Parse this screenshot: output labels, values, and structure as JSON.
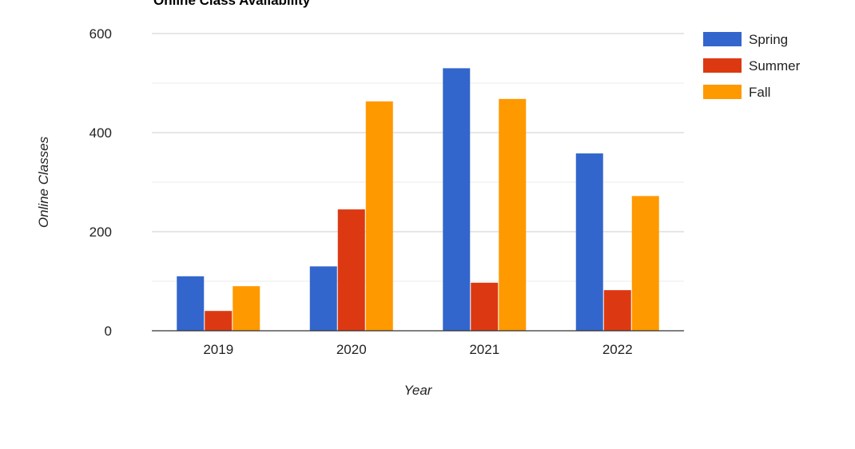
{
  "chart_data": {
    "type": "bar",
    "title": "Online Class Availability",
    "xlabel": "Year",
    "ylabel": "Online Classes",
    "categories": [
      "2019",
      "2020",
      "2021",
      "2022"
    ],
    "series": [
      {
        "name": "Spring",
        "color": "#3366cc",
        "values": [
          110,
          130,
          530,
          358
        ]
      },
      {
        "name": "Summer",
        "color": "#dc3912",
        "values": [
          40,
          245,
          97,
          82
        ]
      },
      {
        "name": "Fall",
        "color": "#ff9900",
        "values": [
          90,
          463,
          468,
          272
        ]
      }
    ],
    "ylim": [
      0,
      600
    ],
    "yticks": [
      0,
      200,
      400,
      600
    ],
    "grid": true,
    "minor_grid": true,
    "legend_position": "right"
  }
}
